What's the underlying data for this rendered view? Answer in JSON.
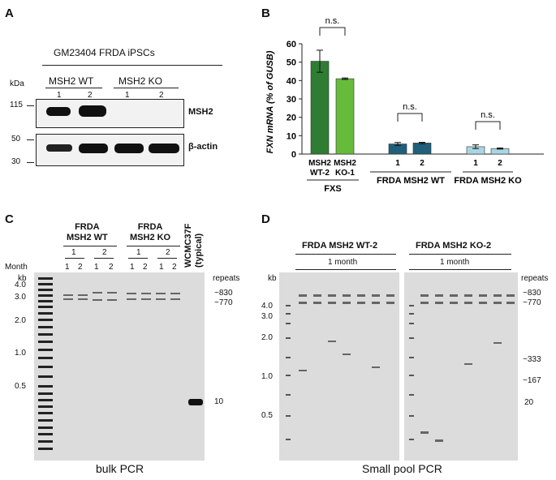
{
  "panelA": {
    "letter": "A",
    "cell_line": "GM23404 FRDA iPSCs",
    "kda_label": "kDa",
    "group_wt": "MSH2 WT",
    "group_ko": "MSH2 KO",
    "lanes": [
      "1",
      "2",
      "1",
      "2"
    ],
    "markers": [
      "115",
      "50",
      "30"
    ],
    "blot_labels": [
      "MSH2",
      "β-actin"
    ]
  },
  "panelB": {
    "letter": "B",
    "significance": "n.s.",
    "groups": [
      "FXS",
      "FRDA MSH2 WT",
      "FRDA MSH2 KO"
    ]
  },
  "panelC": {
    "letter": "C",
    "group1": "FRDA\nMSH2 WT",
    "group2": "FRDA\nMSH2 KO",
    "control": "WCMC37F\n(typical)",
    "month_label": "Month",
    "kb_label": "kb",
    "repeats_label": "repeats",
    "months": [
      "1",
      "2",
      "1",
      "2"
    ],
    "lanes": [
      "1",
      "2",
      "1",
      "2",
      "1",
      "2",
      "1",
      "2"
    ],
    "kb_ticks": [
      "4.0",
      "3.0",
      "2.0",
      "1.0",
      "0.5"
    ],
    "repeat_labels": [
      "~830",
      "~770",
      "10"
    ],
    "caption": "bulk PCR"
  },
  "panelD": {
    "letter": "D",
    "left_title": "FRDA MSH2 WT-2",
    "right_title": "FRDA MSH2 KO-2",
    "time_label": "1 month",
    "kb_label": "kb",
    "repeats_label": "repeats",
    "kb_ticks": [
      "4.0",
      "3.0",
      "2.0",
      "1.0",
      "0.5"
    ],
    "repeat_labels": [
      "~830",
      "~770",
      "~333",
      "~167",
      "20"
    ],
    "caption": "Small pool PCR"
  },
  "chart_data": {
    "type": "bar",
    "ylabel": "FXN mRNA (% of GUSB)",
    "ylim": [
      0,
      60
    ],
    "yticks": [
      0,
      10,
      20,
      30,
      40,
      50,
      60
    ],
    "categories": [
      "MSH2\nWT-2",
      "MSH2\nKO-1",
      "1",
      "2",
      "1",
      "2"
    ],
    "values": [
      50.5,
      41,
      5.5,
      6,
      4,
      3
    ],
    "errors": [
      6,
      0.4,
      0.8,
      0.4,
      1.0,
      0.3
    ],
    "group": [
      "FXS",
      "FXS",
      "FRDA MSH2 WT",
      "FRDA MSH2 WT",
      "FRDA MSH2 KO",
      "FRDA MSH2 KO"
    ],
    "colors": [
      "#2e7d32",
      "#66bb3a",
      "#1f5f7a",
      "#1f5f7a",
      "#a9d6e5",
      "#a9d6e5"
    ]
  }
}
